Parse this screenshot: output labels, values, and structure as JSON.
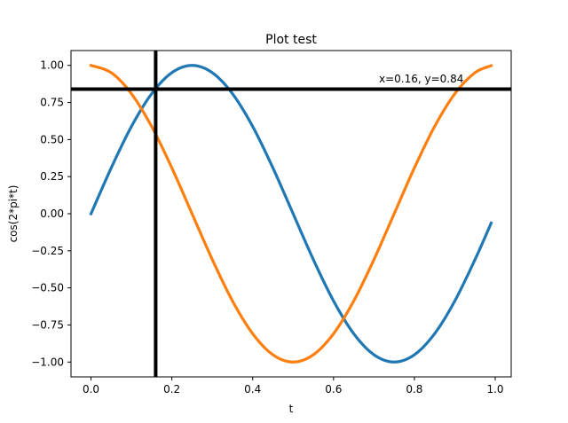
{
  "chart_data": {
    "type": "line",
    "title": "Plot test",
    "xlabel": "t",
    "ylabel": "cos(2*pi*t)",
    "xlim": [
      -0.0495,
      1.0395
    ],
    "ylim": [
      -1.1,
      1.1
    ],
    "xticks": [
      0.0,
      0.2,
      0.4,
      0.6,
      0.8,
      1.0
    ],
    "xtick_labels": [
      "0.0",
      "0.2",
      "0.4",
      "0.6",
      "0.8",
      "1.0"
    ],
    "yticks": [
      1.0,
      0.75,
      0.5,
      0.25,
      0.0,
      -0.25,
      -0.5,
      -0.75,
      -1.0
    ],
    "ytick_labels": [
      "1.00",
      "0.75",
      "0.50",
      "0.25",
      "0.00",
      "−0.25",
      "−0.50",
      "−0.75",
      "−1.00"
    ],
    "grid": false,
    "legend": "none",
    "x": [
      0.0,
      0.05,
      0.1,
      0.15,
      0.2,
      0.25,
      0.3,
      0.35,
      0.4,
      0.45,
      0.5,
      0.55,
      0.6,
      0.65,
      0.7,
      0.75,
      0.8,
      0.85,
      0.9,
      0.95,
      0.99
    ],
    "series": [
      {
        "color": "#1f77b4",
        "values": [
          0.0,
          0.309,
          0.588,
          0.809,
          0.951,
          1.0,
          0.951,
          0.809,
          0.588,
          0.309,
          0.0,
          -0.309,
          -0.588,
          -0.809,
          -0.951,
          -1.0,
          -0.951,
          -0.809,
          -0.588,
          -0.309,
          -0.063
        ]
      },
      {
        "color": "#ff7f0e",
        "values": [
          1.0,
          0.951,
          0.809,
          0.588,
          0.309,
          0.0,
          -0.309,
          -0.588,
          -0.809,
          -0.951,
          -1.0,
          -0.951,
          -0.809,
          -0.588,
          -0.309,
          0.0,
          0.309,
          0.588,
          0.809,
          0.951,
          0.998
        ]
      }
    ],
    "cursor": {
      "x": 0.16,
      "y": 0.84,
      "color": "#000000",
      "label": "x=0.16, y=0.84"
    }
  }
}
